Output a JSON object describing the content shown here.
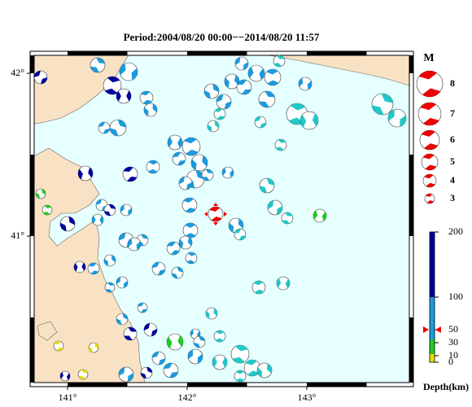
{
  "title": "Period:2004/08/20 00:00−−2014/08/20 11:57",
  "map": {
    "lon_ticks": [
      {
        "value": 141,
        "label": "141°"
      },
      {
        "value": 142,
        "label": "142°"
      },
      {
        "value": 143,
        "label": "143°"
      }
    ],
    "lat_ticks": [
      {
        "value": 42,
        "label": "42°"
      },
      {
        "value": 41,
        "label": "41°"
      }
    ]
  },
  "legend": {
    "title": "M",
    "magnitudes": [
      8,
      7,
      6,
      5,
      4,
      3
    ]
  },
  "depth_scale": {
    "ticks": [
      200,
      100,
      50,
      30,
      10,
      0
    ],
    "label": "Depth(km)"
  }
}
